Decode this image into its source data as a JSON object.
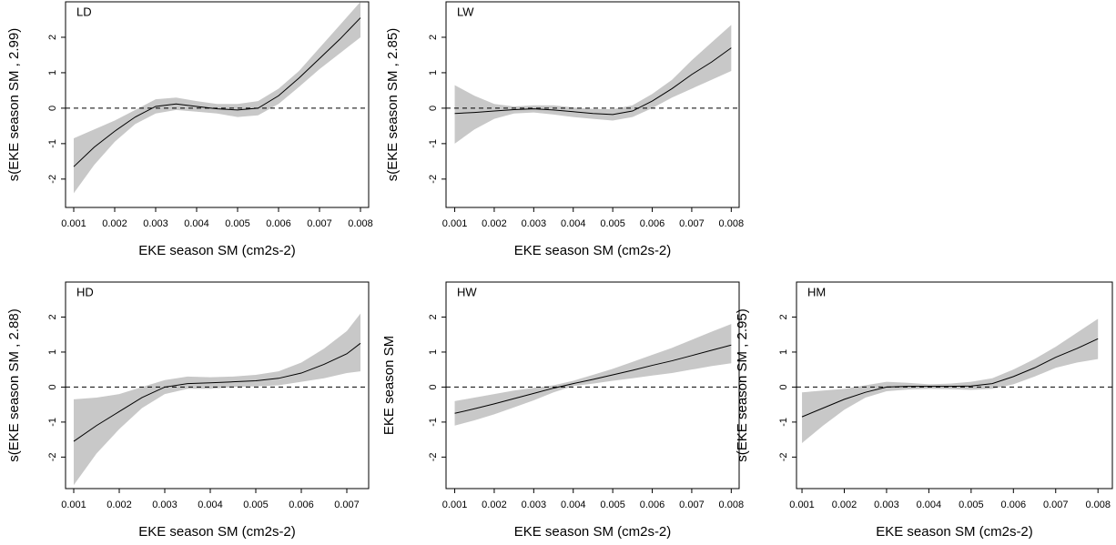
{
  "chart_data": [
    {
      "type": "line",
      "title": "LD",
      "xlabel": "EKE season SM (cm2s-2)",
      "ylabel": "s(EKE season SM , 2.99)",
      "x": [
        0.001,
        0.0015,
        0.002,
        0.0025,
        0.003,
        0.0035,
        0.004,
        0.0045,
        0.005,
        0.0055,
        0.006,
        0.0065,
        0.007,
        0.0075,
        0.008
      ],
      "values": [
        -1.65,
        -1.1,
        -0.65,
        -0.25,
        0.05,
        0.12,
        0.05,
        -0.02,
        -0.05,
        0.0,
        0.35,
        0.85,
        1.4,
        1.95,
        2.55
      ],
      "upper": [
        -0.85,
        -0.6,
        -0.35,
        -0.05,
        0.25,
        0.3,
        0.2,
        0.12,
        0.12,
        0.2,
        0.55,
        1.05,
        1.7,
        2.35,
        3.0
      ],
      "lower": [
        -2.4,
        -1.6,
        -0.95,
        -0.45,
        -0.15,
        -0.05,
        -0.1,
        -0.15,
        -0.25,
        -0.2,
        0.12,
        0.6,
        1.1,
        1.55,
        2.0
      ],
      "color": "#000000",
      "band_color": "#c8c8c8",
      "reference_line": 0,
      "xlim": [
        0.0008,
        0.0082
      ],
      "ylim": [
        -2.8,
        3.0
      ],
      "xticks": [
        0.001,
        0.002,
        0.003,
        0.004,
        0.005,
        0.006,
        0.007,
        0.008
      ],
      "yticks": [
        -2,
        -1,
        0,
        1,
        2
      ]
    },
    {
      "type": "line",
      "title": "LW",
      "xlabel": "EKE season SM (cm2s-2)",
      "ylabel": "s(EKE season SM , 2.85)",
      "x": [
        0.001,
        0.0015,
        0.002,
        0.0025,
        0.003,
        0.0035,
        0.004,
        0.0045,
        0.005,
        0.0055,
        0.006,
        0.0065,
        0.007,
        0.0075,
        0.008
      ],
      "values": [
        -0.15,
        -0.12,
        -0.08,
        -0.04,
        -0.02,
        -0.05,
        -0.1,
        -0.15,
        -0.18,
        -0.08,
        0.2,
        0.55,
        0.95,
        1.3,
        1.7
      ],
      "upper": [
        0.65,
        0.35,
        0.12,
        0.05,
        0.08,
        0.08,
        0.02,
        -0.02,
        -0.03,
        0.08,
        0.4,
        0.8,
        1.35,
        1.85,
        2.35
      ],
      "lower": [
        -1.0,
        -0.6,
        -0.3,
        -0.15,
        -0.12,
        -0.18,
        -0.25,
        -0.3,
        -0.35,
        -0.25,
        0.0,
        0.3,
        0.55,
        0.8,
        1.05
      ],
      "color": "#000000",
      "band_color": "#c8c8c8",
      "reference_line": 0,
      "xlim": [
        0.00078,
        0.0082
      ],
      "ylim": [
        -2.8,
        3.0
      ],
      "xticks": [
        0.001,
        0.002,
        0.003,
        0.004,
        0.005,
        0.006,
        0.007,
        0.008
      ],
      "yticks": [
        -2,
        -1,
        0,
        1,
        2
      ]
    },
    {
      "type": "line",
      "title": "HD",
      "xlabel": "EKE season SM (cm2s-2)",
      "ylabel": "s(EKE season SM , 2.88)",
      "x": [
        0.001,
        0.0015,
        0.002,
        0.0025,
        0.003,
        0.0035,
        0.004,
        0.0045,
        0.005,
        0.0055,
        0.006,
        0.0065,
        0.007,
        0.0073
      ],
      "values": [
        -1.55,
        -1.1,
        -0.7,
        -0.3,
        0.0,
        0.1,
        0.12,
        0.15,
        0.18,
        0.25,
        0.4,
        0.65,
        0.95,
        1.25
      ],
      "upper": [
        -0.35,
        -0.3,
        -0.2,
        0.0,
        0.2,
        0.3,
        0.28,
        0.3,
        0.35,
        0.45,
        0.7,
        1.1,
        1.6,
        2.1
      ],
      "lower": [
        -2.8,
        -1.9,
        -1.2,
        -0.6,
        -0.2,
        -0.05,
        -0.05,
        0.0,
        0.02,
        0.05,
        0.15,
        0.25,
        0.4,
        0.45
      ],
      "color": "#000000",
      "band_color": "#c8c8c8",
      "reference_line": 0,
      "xlim": [
        0.00082,
        0.00748
      ],
      "ylim": [
        -2.9,
        3.0
      ],
      "xticks": [
        0.001,
        0.002,
        0.003,
        0.004,
        0.005,
        0.006,
        0.007
      ],
      "yticks": [
        -2,
        -1,
        0,
        1,
        2
      ]
    },
    {
      "type": "line",
      "title": "HW",
      "xlabel": "EKE season SM (cm2s-2)",
      "ylabel": "EKE season SM",
      "x": [
        0.001,
        0.0015,
        0.002,
        0.0025,
        0.003,
        0.0035,
        0.004,
        0.0045,
        0.005,
        0.0055,
        0.006,
        0.0065,
        0.007,
        0.0075,
        0.008
      ],
      "values": [
        -0.75,
        -0.62,
        -0.48,
        -0.33,
        -0.18,
        -0.03,
        0.1,
        0.22,
        0.35,
        0.48,
        0.62,
        0.75,
        0.9,
        1.05,
        1.2
      ],
      "upper": [
        -0.4,
        -0.3,
        -0.2,
        -0.1,
        -0.02,
        0.05,
        0.18,
        0.35,
        0.52,
        0.72,
        0.92,
        1.12,
        1.35,
        1.58,
        1.8
      ],
      "lower": [
        -1.1,
        -0.95,
        -0.78,
        -0.58,
        -0.38,
        -0.15,
        0.03,
        0.1,
        0.18,
        0.25,
        0.33,
        0.4,
        0.5,
        0.6,
        0.68
      ],
      "color": "#000000",
      "band_color": "#c8c8c8",
      "reference_line": 0,
      "xlim": [
        0.00078,
        0.0082
      ],
      "ylim": [
        -2.9,
        3.0
      ],
      "xticks": [
        0.001,
        0.002,
        0.003,
        0.004,
        0.005,
        0.006,
        0.007,
        0.008
      ],
      "yticks": [
        -2,
        -1,
        0,
        1,
        2
      ]
    },
    {
      "type": "line",
      "title": "HM",
      "xlabel": "EKE season SM (cm2s-2)",
      "ylabel": "s(EKE season SM , 2.95)",
      "x": [
        0.001,
        0.0015,
        0.002,
        0.0025,
        0.003,
        0.0035,
        0.004,
        0.0045,
        0.005,
        0.0055,
        0.006,
        0.0065,
        0.007,
        0.0075,
        0.008
      ],
      "values": [
        -0.85,
        -0.6,
        -0.35,
        -0.15,
        0.0,
        0.02,
        0.02,
        0.02,
        0.03,
        0.1,
        0.3,
        0.55,
        0.85,
        1.1,
        1.38
      ],
      "upper": [
        -0.15,
        -0.1,
        -0.05,
        0.05,
        0.15,
        0.12,
        0.08,
        0.1,
        0.15,
        0.25,
        0.5,
        0.8,
        1.15,
        1.55,
        1.95
      ],
      "lower": [
        -1.6,
        -1.1,
        -0.65,
        -0.3,
        -0.12,
        -0.07,
        -0.05,
        -0.06,
        -0.08,
        -0.05,
        0.08,
        0.3,
        0.55,
        0.7,
        0.8
      ],
      "color": "#000000",
      "band_color": "#c8c8c8",
      "reference_line": 0,
      "xlim": [
        0.00087,
        0.00834
      ],
      "ylim": [
        -2.9,
        3.0
      ],
      "xticks": [
        0.001,
        0.002,
        0.003,
        0.004,
        0.005,
        0.006,
        0.007,
        0.008
      ],
      "yticks": [
        -2,
        -1,
        0,
        1,
        2
      ]
    }
  ]
}
